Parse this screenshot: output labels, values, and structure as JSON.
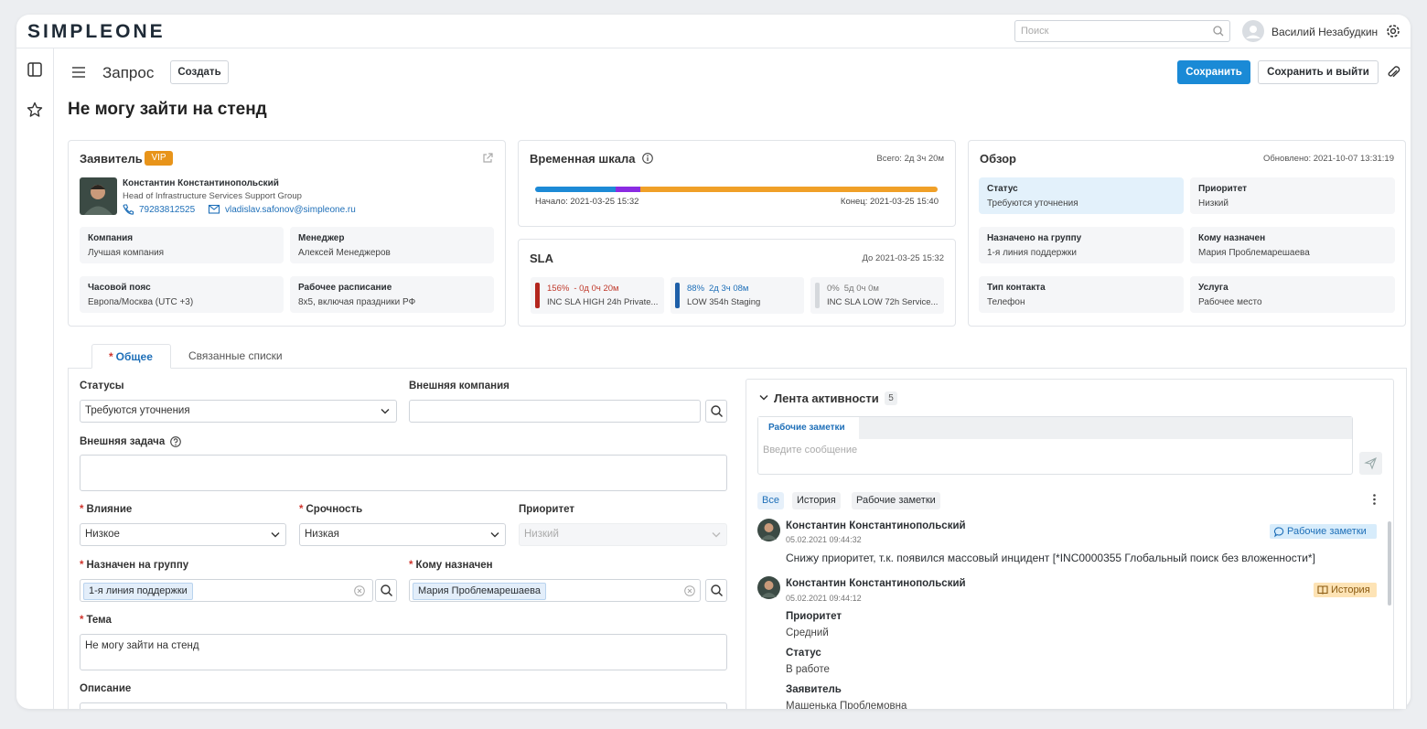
{
  "header": {
    "logo": "SIMPLEONE",
    "search_placeholder": "Поиск",
    "user": "Василий Незабудкин"
  },
  "toolbar": {
    "form_name": "Запрос",
    "create": "Создать",
    "save": "Сохранить",
    "save_exit": "Сохранить и выйти"
  },
  "title": "Не могу зайти на стенд",
  "requester": {
    "title": "Заявитель",
    "badge": "VIP",
    "name": "Константин Константинопольский",
    "role": "Head of Infrastructure Services Support Group",
    "phone": "79283812525",
    "email": "vladislav.safonov@simpleone.ru",
    "fields": [
      {
        "label": "Компания",
        "value": "Лучшая компания"
      },
      {
        "label": "Менеджер",
        "value": "Алексей Менеджеров"
      },
      {
        "label": "Часовой пояс",
        "value": "Европа/Москва (UTC +3)"
      },
      {
        "label": "Рабочее расписание",
        "value": "8x5, включая праздники РФ"
      }
    ]
  },
  "timeline": {
    "title": "Временная шкала",
    "total": "Всего: 2д 3ч 20м",
    "start": "Начало: 2021-03-25 15:32",
    "end": "Конец: 2021-03-25 15:40"
  },
  "sla": {
    "title": "SLA",
    "deadline": "До 2021-03-25 15:32",
    "items": [
      {
        "percent": "156%",
        "time": "- 0д 0ч 20м",
        "name": "INC SLA HIGH 24h Private..."
      },
      {
        "percent": "88%",
        "time": "2д 3ч 08м",
        "name": "LOW 354h Staging"
      },
      {
        "percent": "0%",
        "time": "5д 0ч 0м",
        "name": "INC SLA LOW 72h Service..."
      }
    ]
  },
  "overview": {
    "title": "Обзор",
    "updated": "Обновлено: 2021-10-07 13:31:19",
    "fields": [
      {
        "label": "Статус",
        "value": "Требуются уточнения"
      },
      {
        "label": "Приоритет",
        "value": "Низкий"
      },
      {
        "label": "Назначено на группу",
        "value": "1-я линия поддержки"
      },
      {
        "label": "Кому назначен",
        "value": "Мария Проблемарешаева"
      },
      {
        "label": "Тип контакта",
        "value": "Телефон"
      },
      {
        "label": "Услуга",
        "value": "Рабочее место"
      }
    ]
  },
  "required_mark": "*",
  "tabs": [
    "Общее",
    "Связанные списки"
  ],
  "form": {
    "status": {
      "label": "Статусы",
      "value": "Требуются уточнения"
    },
    "external_company": {
      "label": "Внешняя компания"
    },
    "external_task": {
      "label": "Внешняя задача"
    },
    "impact": {
      "label": "Влияние",
      "value": "Низкое"
    },
    "urgency": {
      "label": "Срочность",
      "value": "Низкая"
    },
    "priority": {
      "label": "Приоритет",
      "value": "Низкий"
    },
    "group": {
      "label": "Назначен на группу",
      "value": "1-я линия поддержки"
    },
    "assignee": {
      "label": "Кому назначен",
      "value": "Мария Проблемарешаева"
    },
    "subject": {
      "label": "Тема",
      "value": "Не могу зайти на стенд"
    },
    "description": {
      "label": "Описание"
    }
  },
  "activity": {
    "title": "Лента активности",
    "count": "5",
    "compose_tab": "Рабочие заметки",
    "placeholder": "Введите сообщение",
    "filters": [
      "Все",
      "История",
      "Рабочие заметки"
    ],
    "entries": [
      {
        "author": "Константин Константинопольский",
        "date": "05.02.2021 09:44:32",
        "badge": "Рабочие заметки",
        "text": "Снижу приоритет, т.к. появился массовый инцидент [*INC0000355 Глобальный поиск без вложенности*]"
      },
      {
        "author": "Константин Константинопольский",
        "date": "05.02.2021 09:44:12",
        "badge": "История",
        "changes": [
          {
            "field": "Приоритет",
            "value": "Средний"
          },
          {
            "field": "Статус",
            "value": "В работе"
          },
          {
            "field": "Заявитель",
            "value": "Машенька Проблемовна"
          }
        ]
      }
    ]
  }
}
